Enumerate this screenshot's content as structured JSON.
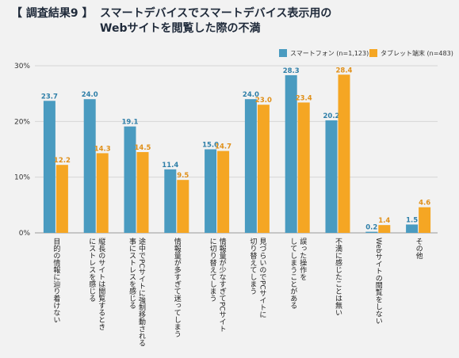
{
  "header": {
    "tag": "【 調査結果9 】",
    "title_lines": [
      "スマートデバイスでスマートデバイス表示用の",
      "Webサイトを閲覧した際の不満"
    ]
  },
  "chart_data": {
    "type": "bar",
    "title": "スマートデバイスでスマートデバイス表示用のWebサイトを閲覧した際の不満",
    "xlabel": "",
    "ylabel": "",
    "ylim": [
      0,
      30
    ],
    "yticks": [
      0,
      10,
      20,
      30
    ],
    "ytick_labels": [
      "0%",
      "10%",
      "20%",
      "30%"
    ],
    "grid": true,
    "legend_position": "top-right",
    "categories": [
      "目的の情報に辿り着けない",
      "縦長のサイトは閲覧するときにストレスを感じる",
      "途中でPCサイトに強制移動される事にストレスを感じる",
      "情報量が多すぎて迷ってしまう",
      "情報量が少なすぎてPCサイトに切り替えてしまう",
      "見づらいのでPCサイトに切り替えてしまう",
      "誤った操作をしてしまうことがある",
      "不満に感じたことは無い",
      "Webサイトの閲覧をしない",
      "その他"
    ],
    "category_lines": [
      [
        "目的の情報に辿り着けない"
      ],
      [
        "縦長のサイトは閲覧するとき",
        "にストレスを感じる"
      ],
      [
        "途中でPCサイトに強制移動される",
        "事にストレスを感じる"
      ],
      [
        "情報量が多すぎて迷ってしまう"
      ],
      [
        "情報量が少なすぎてPCサイト",
        "に切り替えてしまう"
      ],
      [
        "見づらいのでPCサイトに",
        "切り替えてしまう"
      ],
      [
        "誤った操作を",
        "してしまうことがある"
      ],
      [
        "不満に感じたことは無い"
      ],
      [
        "Webサイトの閲覧をしない"
      ],
      [
        "その他"
      ]
    ],
    "series": [
      {
        "name": "スマートフォン (n=1,123)",
        "color": "#4a9bc0",
        "values": [
          23.7,
          24.0,
          19.1,
          11.4,
          15.0,
          24.0,
          28.3,
          20.2,
          0.2,
          1.5
        ]
      },
      {
        "name": "タブレット端末 (n=483)",
        "color": "#f5a623",
        "values": [
          12.2,
          14.3,
          14.5,
          9.5,
          14.7,
          23.0,
          23.4,
          28.4,
          1.4,
          4.6
        ]
      }
    ]
  }
}
